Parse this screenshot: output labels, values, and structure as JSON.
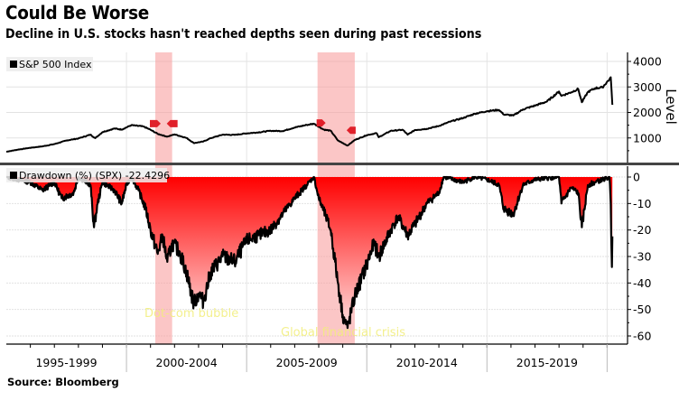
{
  "header": {
    "title": "Could Be Worse",
    "subtitle": "Decline in U.S. stocks hasn't reached depths seen during past recessions"
  },
  "footer": {
    "source": "Source: Bloomberg"
  },
  "colors": {
    "line": "#000000",
    "fill_top": "#ff0000",
    "fill_bottom": "#ffd0d0",
    "recession_band": "#f8a0a0",
    "annotation": "#f2ee7a",
    "marker": "#e0202a"
  },
  "chart_data": [
    {
      "type": "line",
      "title": "S&P 500 Index",
      "legend": "S&P 500 Index",
      "legend_position": "top-left",
      "ylabel": "Level",
      "ylim": [
        0,
        4200
      ],
      "yticks": [
        1000,
        2000,
        3000,
        4000
      ],
      "grid": true,
      "x": [
        1995.0,
        1995.5,
        1996.0,
        1996.5,
        1997.0,
        1997.5,
        1997.8,
        1998.0,
        1998.5,
        1998.7,
        1999.0,
        1999.5,
        1999.8,
        2000.2,
        2000.7,
        2001.0,
        2001.3,
        2001.7,
        2002.0,
        2002.5,
        2002.8,
        2003.2,
        2003.5,
        2004.0,
        2004.5,
        2005.0,
        2005.5,
        2006.0,
        2006.5,
        2007.0,
        2007.5,
        2007.8,
        2008.2,
        2008.5,
        2008.8,
        2009.2,
        2009.5,
        2010.0,
        2010.4,
        2010.5,
        2011.0,
        2011.5,
        2011.7,
        2012.0,
        2012.5,
        2013.0,
        2013.5,
        2014.0,
        2014.5,
        2015.0,
        2015.5,
        2015.7,
        2016.1,
        2016.5,
        2017.0,
        2017.5,
        2018.0,
        2018.1,
        2018.5,
        2018.8,
        2018.95,
        2019.2,
        2019.5,
        2019.8,
        2020.1,
        2020.15,
        2020.22
      ],
      "values": [
        460,
        545,
        615,
        670,
        760,
        900,
        950,
        980,
        1130,
        990,
        1230,
        1370,
        1330,
        1500,
        1450,
        1320,
        1160,
        1050,
        1140,
        1000,
        800,
        860,
        990,
        1130,
        1120,
        1180,
        1220,
        1280,
        1270,
        1410,
        1510,
        1560,
        1330,
        1280,
        900,
        700,
        920,
        1110,
        1190,
        1030,
        1280,
        1320,
        1130,
        1310,
        1360,
        1470,
        1650,
        1780,
        1950,
        2050,
        2100,
        1920,
        1880,
        2120,
        2270,
        2430,
        2820,
        2650,
        2790,
        2920,
        2400,
        2800,
        2950,
        2980,
        3300,
        3380,
        2300
      ]
    },
    {
      "type": "area",
      "title": "Drawdown (%) (SPX)",
      "legend": "Drawdown (%) (SPX) -22.4296",
      "legend_position": "top-left",
      "last_value": "-22.4296",
      "ylabel": "",
      "ylim": [
        -62,
        2
      ],
      "yticks": [
        0,
        -10,
        -20,
        -30,
        -40,
        -50,
        -60
      ],
      "grid": true,
      "x": [
        1995.0,
        1996.0,
        1996.5,
        1997.0,
        1997.3,
        1997.8,
        1998.0,
        1998.5,
        1998.65,
        1998.8,
        1999.0,
        1999.5,
        1999.8,
        2000.0,
        2000.2,
        2000.5,
        2000.8,
        2001.0,
        2001.3,
        2001.5,
        2001.7,
        2001.9,
        2002.2,
        2002.5,
        2002.8,
        2003.0,
        2003.2,
        2003.5,
        2004.0,
        2004.5,
        2005.0,
        2005.5,
        2006.0,
        2006.5,
        2007.0,
        2007.5,
        2007.8,
        2008.0,
        2008.3,
        2008.5,
        2008.8,
        2009.0,
        2009.2,
        2009.5,
        2010.0,
        2010.3,
        2010.5,
        2011.0,
        2011.3,
        2011.7,
        2012.0,
        2012.5,
        2013.0,
        2013.2,
        2014.0,
        2014.5,
        2015.0,
        2015.5,
        2015.7,
        2016.1,
        2016.5,
        2017.0,
        2018.0,
        2018.1,
        2018.5,
        2018.8,
        2018.95,
        2019.2,
        2019.5,
        2020.1,
        2020.15,
        2020.2,
        2020.22
      ],
      "values": [
        0,
        -2,
        -5,
        -2,
        -8,
        -6,
        0,
        -3,
        -19,
        -10,
        -2,
        -5,
        -10,
        -3,
        0,
        -5,
        -12,
        -20,
        -29,
        -22,
        -32,
        -25,
        -28,
        -36,
        -48,
        -44,
        -47,
        -36,
        -30,
        -32,
        -24,
        -22,
        -20,
        -14,
        -8,
        -3,
        0,
        -8,
        -15,
        -20,
        -40,
        -52,
        -57,
        -45,
        -33,
        -25,
        -30,
        -20,
        -15,
        -22,
        -18,
        -10,
        -6,
        0,
        -2,
        0,
        -1,
        -3,
        -12,
        -14,
        -3,
        -1,
        0,
        -10,
        -4,
        -6,
        -19,
        -3,
        -2,
        0,
        -10,
        -34,
        -22.4
      ]
    }
  ],
  "x_axis": {
    "labels": [
      "1995-1999",
      "2000-2004",
      "2005-2009",
      "2010-2014",
      "2015-2019"
    ]
  },
  "recessions": [
    {
      "label": "Dot-com bubble",
      "start": 2001.2,
      "end": 2001.9
    },
    {
      "label": "Global financial crisis",
      "start": 2007.95,
      "end": 2009.5
    }
  ]
}
